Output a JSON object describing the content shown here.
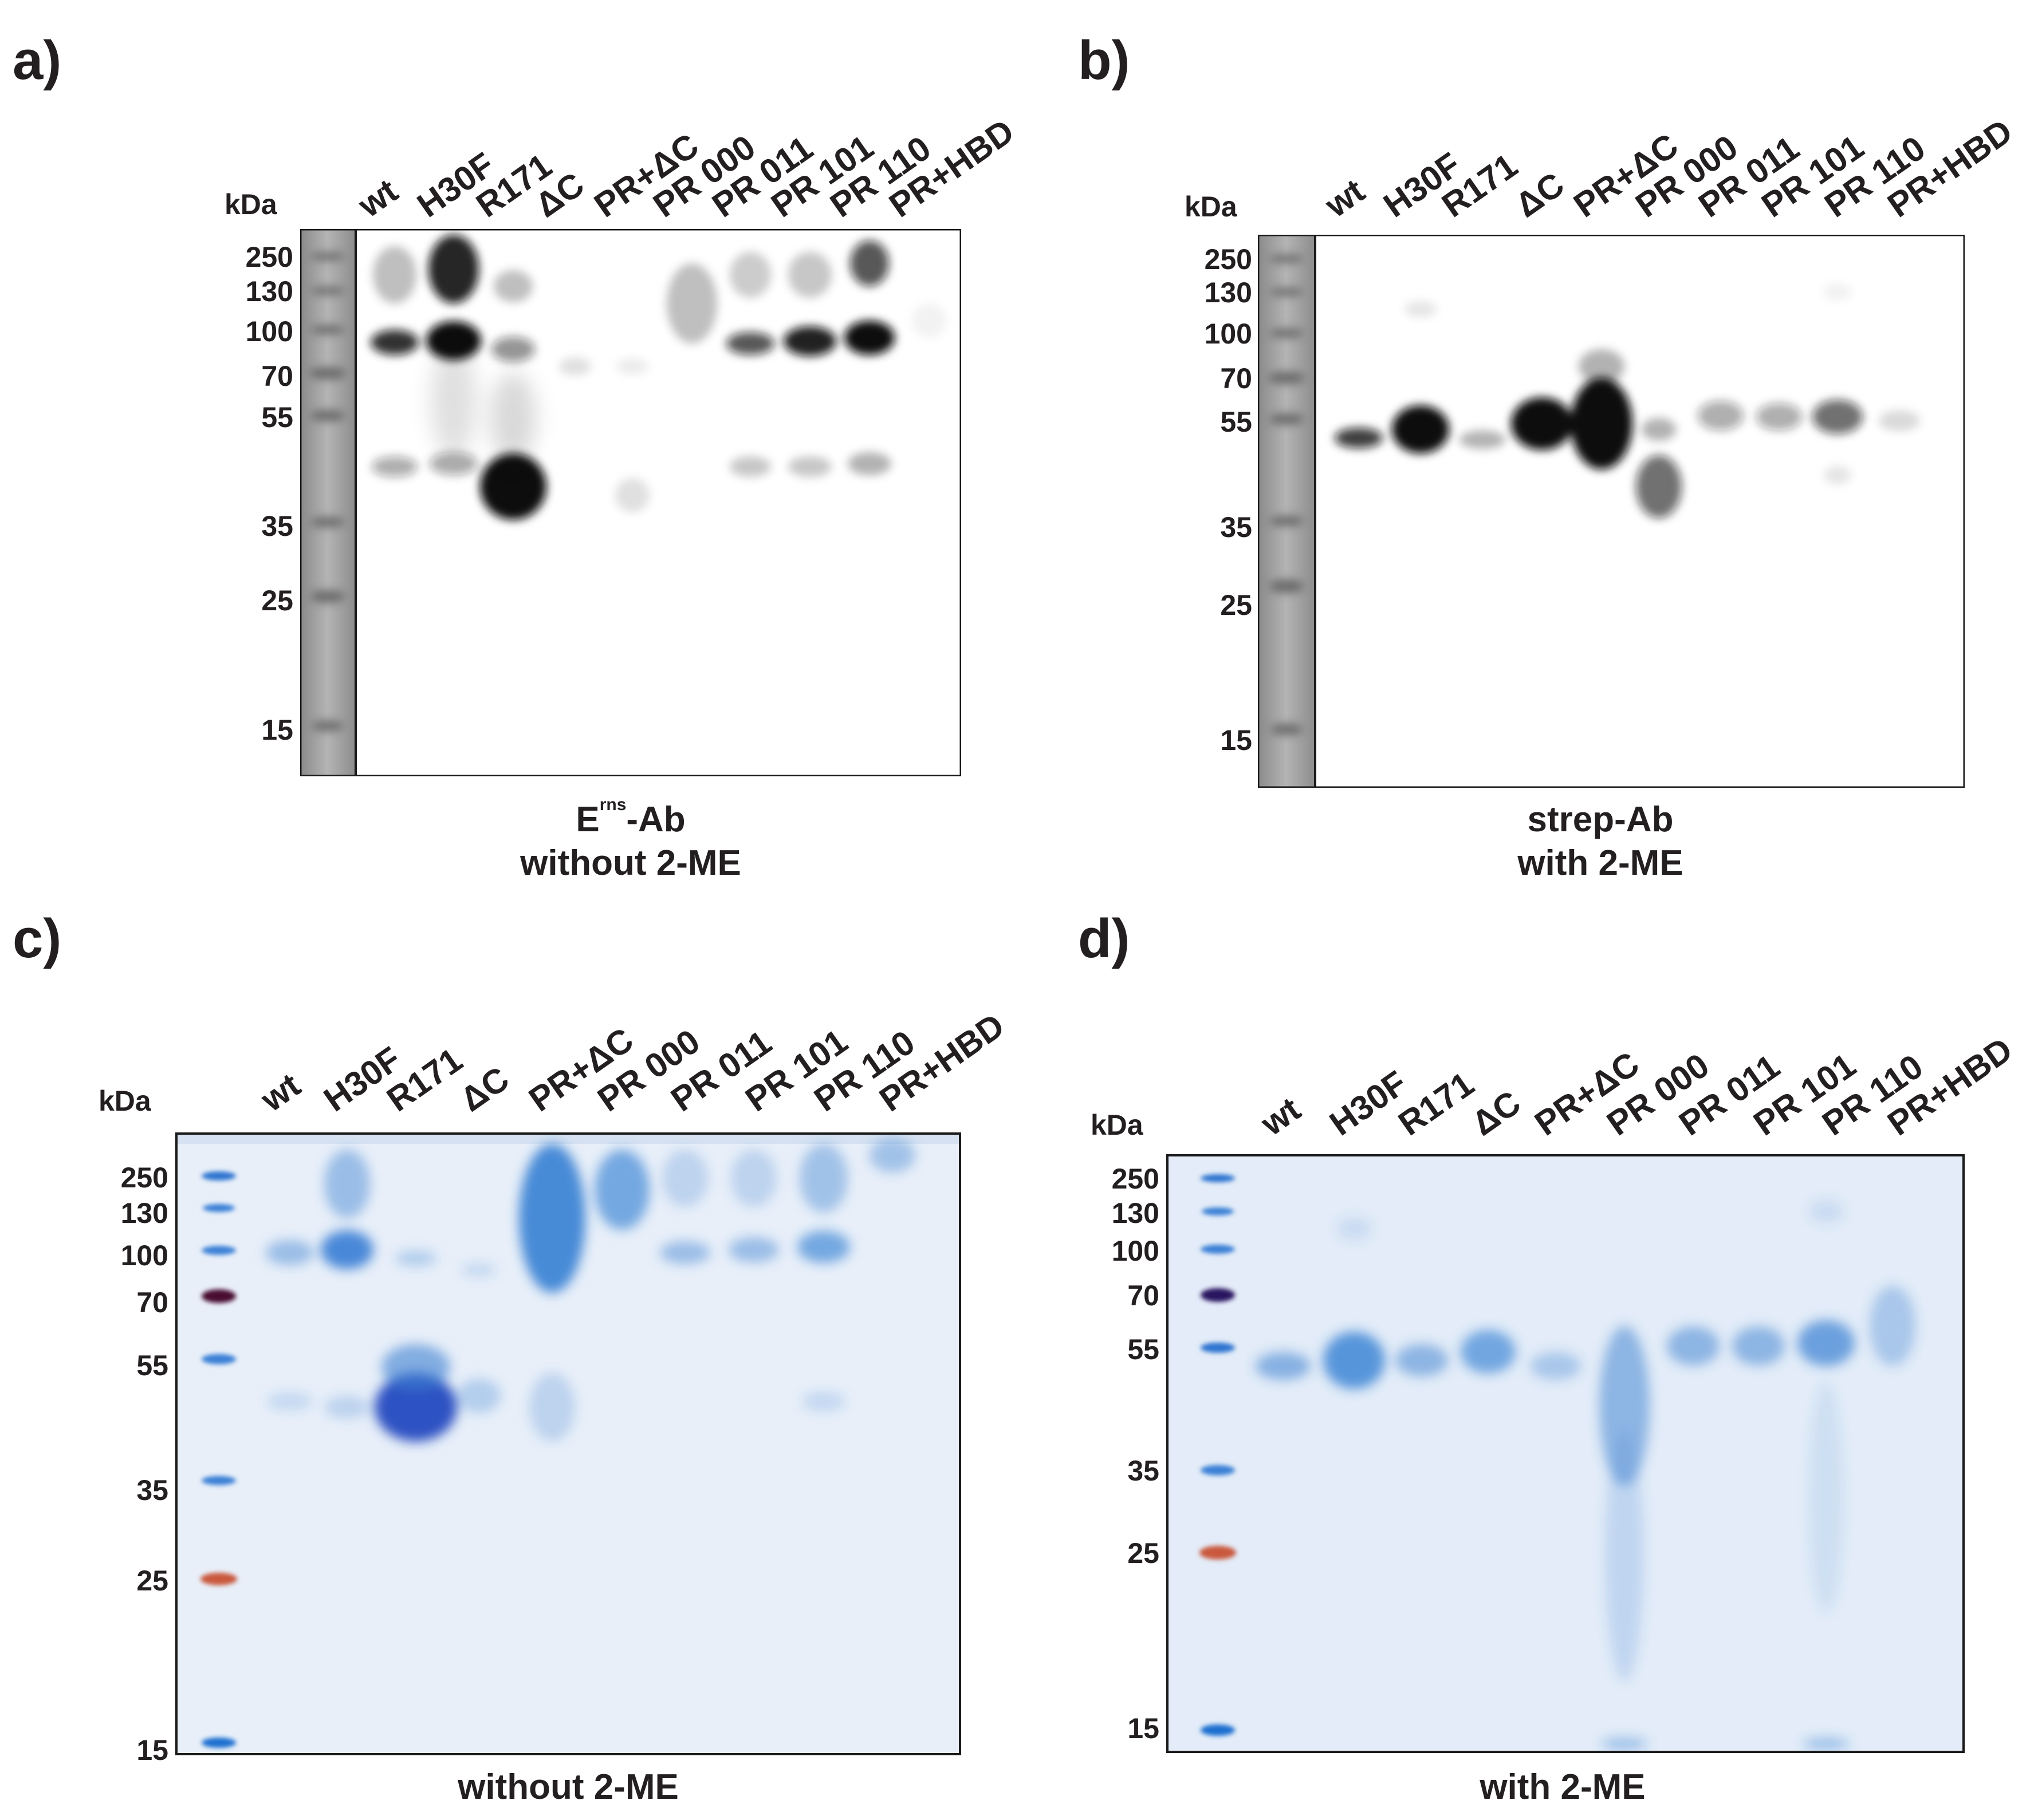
{
  "lanes": [
    "wt",
    "H30F",
    "R171",
    "ΔC",
    "PR+ΔC",
    "PR 000",
    "PR 011",
    "PR 101",
    "PR 110",
    "PR+HBD"
  ],
  "kda_label": "kDa",
  "markers": [
    "250",
    "130",
    "100",
    "70",
    "55",
    "35",
    "25",
    "15"
  ],
  "panels": {
    "a": {
      "label": "a)",
      "caption_line1_main": "E",
      "caption_line1_sup": "rns",
      "caption_line1_tail": "-Ab",
      "caption_line2": "without 2-ME"
    },
    "b": {
      "label": "b)",
      "caption_line1": "strep-Ab",
      "caption_line2": "with 2-ME"
    },
    "c": {
      "label": "c)",
      "caption": "without 2-ME"
    },
    "d": {
      "label": "d)",
      "caption": "with 2-ME"
    }
  },
  "colors": {
    "text": "#231f20",
    "stain_blue": "#3a7fd0",
    "gel_bg": "#e9f0fa",
    "blot_band": "#111111"
  }
}
